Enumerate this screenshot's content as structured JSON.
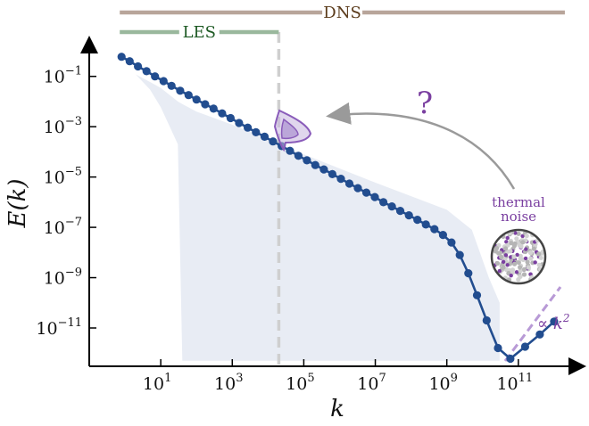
{
  "chart_data": {
    "type": "line",
    "xscale": "log",
    "yscale": "log",
    "xlabel": "k",
    "ylabel": "E(k)",
    "xlim": [
      0.1,
      3000000000000.0
    ],
    "ylim": [
      3e-13,
      3.0
    ],
    "x_ticks": [
      {
        "value": 10,
        "base": "10",
        "exp": "1"
      },
      {
        "value": 1000,
        "base": "10",
        "exp": "3"
      },
      {
        "value": 100000,
        "base": "10",
        "exp": "5"
      },
      {
        "value": 10000000,
        "base": "10",
        "exp": "7"
      },
      {
        "value": 1000000000,
        "base": "10",
        "exp": "9"
      },
      {
        "value": 100000000000,
        "base": "10",
        "exp": "11"
      }
    ],
    "y_ticks": [
      {
        "value": 0.1,
        "base": "10",
        "exp": "−1"
      },
      {
        "value": 0.001,
        "base": "10",
        "exp": "−3"
      },
      {
        "value": 1e-05,
        "base": "10",
        "exp": "−5"
      },
      {
        "value": 1e-07,
        "base": "10",
        "exp": "−7"
      },
      {
        "value": 1e-09,
        "base": "10",
        "exp": "−9"
      },
      {
        "value": 1e-11,
        "base": "10",
        "exp": "−11"
      }
    ],
    "series": [
      {
        "color": "#224d8f",
        "x": [
          0.8,
          1.35,
          2.3,
          4.0,
          6.9,
          12,
          20,
          35,
          60,
          100,
          175,
          300,
          520,
          900,
          1550,
          2700,
          4600,
          8000,
          13800,
          24000,
          41000,
          71000,
          122000,
          210000,
          365000,
          630000,
          1090000,
          1880000,
          3250000,
          5600000,
          9700000,
          16800000,
          29000000,
          50000000,
          87000000,
          150000000,
          260000000,
          450000000,
          780000000,
          1350000000,
          2300000000,
          4000000000,
          7000000000,
          13000000000,
          27000000000,
          60000000000,
          155000000000,
          400000000000,
          1000000000000
        ],
        "y": [
          0.6,
          0.4,
          0.25,
          0.16,
          0.1,
          0.065,
          0.042,
          0.027,
          0.018,
          0.012,
          0.0078,
          0.0052,
          0.0034,
          0.0022,
          0.0014,
          0.00092,
          0.0006,
          0.0004,
          0.00026,
          0.00017,
          0.00011,
          7e-05,
          4.6e-05,
          3e-05,
          2e-05,
          1.3e-05,
          8.5e-06,
          5.5e-06,
          3.6e-06,
          2.4e-06,
          1.6e-06,
          1e-06,
          6.8e-07,
          4.5e-07,
          3e-07,
          2e-07,
          1.3e-07,
          8.5e-08,
          5e-08,
          2.5e-08,
          8e-09,
          1.5e-09,
          2e-10,
          2e-11,
          1.6e-12,
          6e-13,
          1.8e-12,
          5.5e-12,
          1.8e-11
        ]
      }
    ],
    "envelope": {
      "color": "#e8ecf4",
      "x": [
        0.8,
        2,
        5,
        10,
        30,
        40,
        100,
        1000,
        100000,
        10000000,
        1000000000,
        5000000000,
        15000000000,
        30000000000
      ],
      "upper": [
        0.2,
        0.12,
        0.06,
        0.035,
        0.01,
        0.008,
        0.004,
        0.0012,
        8e-05,
        6e-06,
        5e-07,
        8e-08,
        1e-09,
        1e-10
      ],
      "lower": [
        0.2,
        0.12,
        0.03,
        0.006,
        0.0002,
        5e-13,
        5e-13,
        5e-13,
        5e-13,
        5e-13,
        5e-13,
        5e-13,
        5e-13,
        5e-13
      ]
    },
    "cutoff_k": 20000,
    "ranges": [
      {
        "label": "DNS",
        "from": 0.8,
        "to": 2000000000000,
        "color": "#b8a59a",
        "text_color": "#5a3a1a"
      },
      {
        "label": "LES",
        "from": 0.8,
        "to": 20000,
        "color": "#9ab89d",
        "text_color": "#1e5a24"
      }
    ],
    "annotations": {
      "question": "?",
      "thermal": [
        "thermal",
        "noise"
      ],
      "slope": "∝ k",
      "slope_exp": "2"
    },
    "colors": {
      "line": "#224d8f",
      "envelope": "#e8ecf4",
      "cutoff": "#cfcfcf",
      "purple": "#7a3fa0",
      "arrow": "#9a9a9a"
    }
  }
}
